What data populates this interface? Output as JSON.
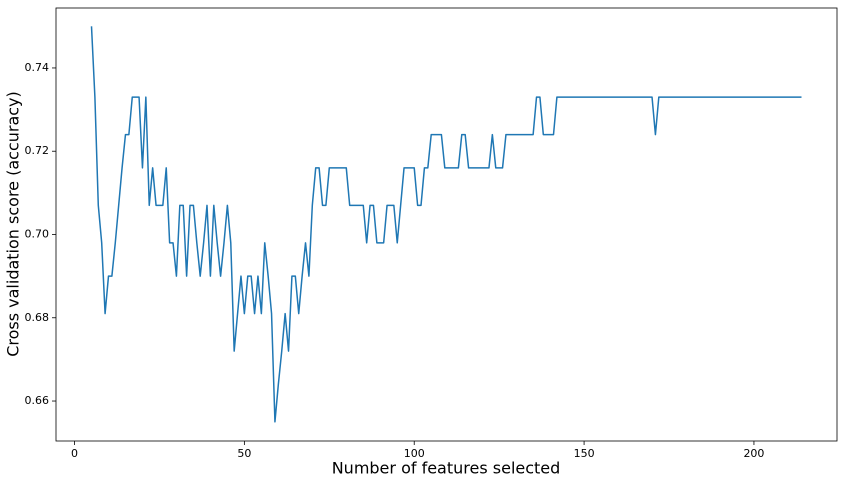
{
  "chart_data": {
    "type": "line",
    "xlabel": "Number of features selected",
    "ylabel": "Cross validation score (accuracy)",
    "color": "#1f77b4",
    "grid": false,
    "x": [
      5,
      6,
      7,
      8,
      9,
      10,
      11,
      12,
      13,
      14,
      15,
      16,
      17,
      19,
      20,
      21,
      22,
      23,
      24,
      26,
      27,
      28,
      29,
      30,
      31,
      32,
      33,
      34,
      35,
      36,
      37,
      38,
      39,
      40,
      41,
      42,
      43,
      44,
      45,
      46,
      47,
      48,
      49,
      50,
      51,
      52,
      53,
      54,
      55,
      56,
      57,
      58,
      59,
      60,
      61,
      62,
      63,
      64,
      65,
      66,
      67,
      68,
      69,
      70,
      71,
      72,
      73,
      74,
      75,
      80,
      81,
      85,
      86,
      87,
      88,
      89,
      91,
      92,
      94,
      95,
      96,
      97,
      100,
      101,
      102,
      103,
      104,
      105,
      108,
      109,
      113,
      114,
      115,
      116,
      122,
      123,
      124,
      126,
      127,
      135,
      136,
      137,
      138,
      141,
      142,
      170,
      171,
      172,
      214
    ],
    "values": [
      0.75,
      0.733,
      0.707,
      0.698,
      0.681,
      0.69,
      0.69,
      0.698,
      0.707,
      0.716,
      0.724,
      0.724,
      0.733,
      0.733,
      0.716,
      0.733,
      0.707,
      0.716,
      0.707,
      0.707,
      0.716,
      0.698,
      0.698,
      0.69,
      0.707,
      0.707,
      0.69,
      0.707,
      0.707,
      0.698,
      0.69,
      0.698,
      0.707,
      0.69,
      0.707,
      0.698,
      0.69,
      0.698,
      0.707,
      0.698,
      0.672,
      0.681,
      0.69,
      0.681,
      0.69,
      0.69,
      0.681,
      0.69,
      0.681,
      0.698,
      0.69,
      0.681,
      0.655,
      0.664,
      0.672,
      0.681,
      0.672,
      0.69,
      0.69,
      0.681,
      0.69,
      0.698,
      0.69,
      0.707,
      0.716,
      0.716,
      0.707,
      0.707,
      0.716,
      0.716,
      0.707,
      0.707,
      0.698,
      0.707,
      0.707,
      0.698,
      0.698,
      0.707,
      0.707,
      0.698,
      0.707,
      0.716,
      0.716,
      0.707,
      0.707,
      0.716,
      0.716,
      0.724,
      0.724,
      0.716,
      0.716,
      0.724,
      0.724,
      0.716,
      0.716,
      0.724,
      0.716,
      0.716,
      0.724,
      0.724,
      0.733,
      0.733,
      0.724,
      0.724,
      0.733,
      0.733,
      0.724,
      0.733,
      0.733
    ],
    "xlim": [
      -5.45,
      224.45
    ],
    "ylim": [
      0.6504,
      0.7544
    ],
    "xticks": [
      0,
      50,
      100,
      150,
      200
    ],
    "yticks": [
      0.66,
      0.68,
      {
        "value": 0.7,
        "label": "0.70"
      },
      0.72,
      0.74
    ]
  }
}
